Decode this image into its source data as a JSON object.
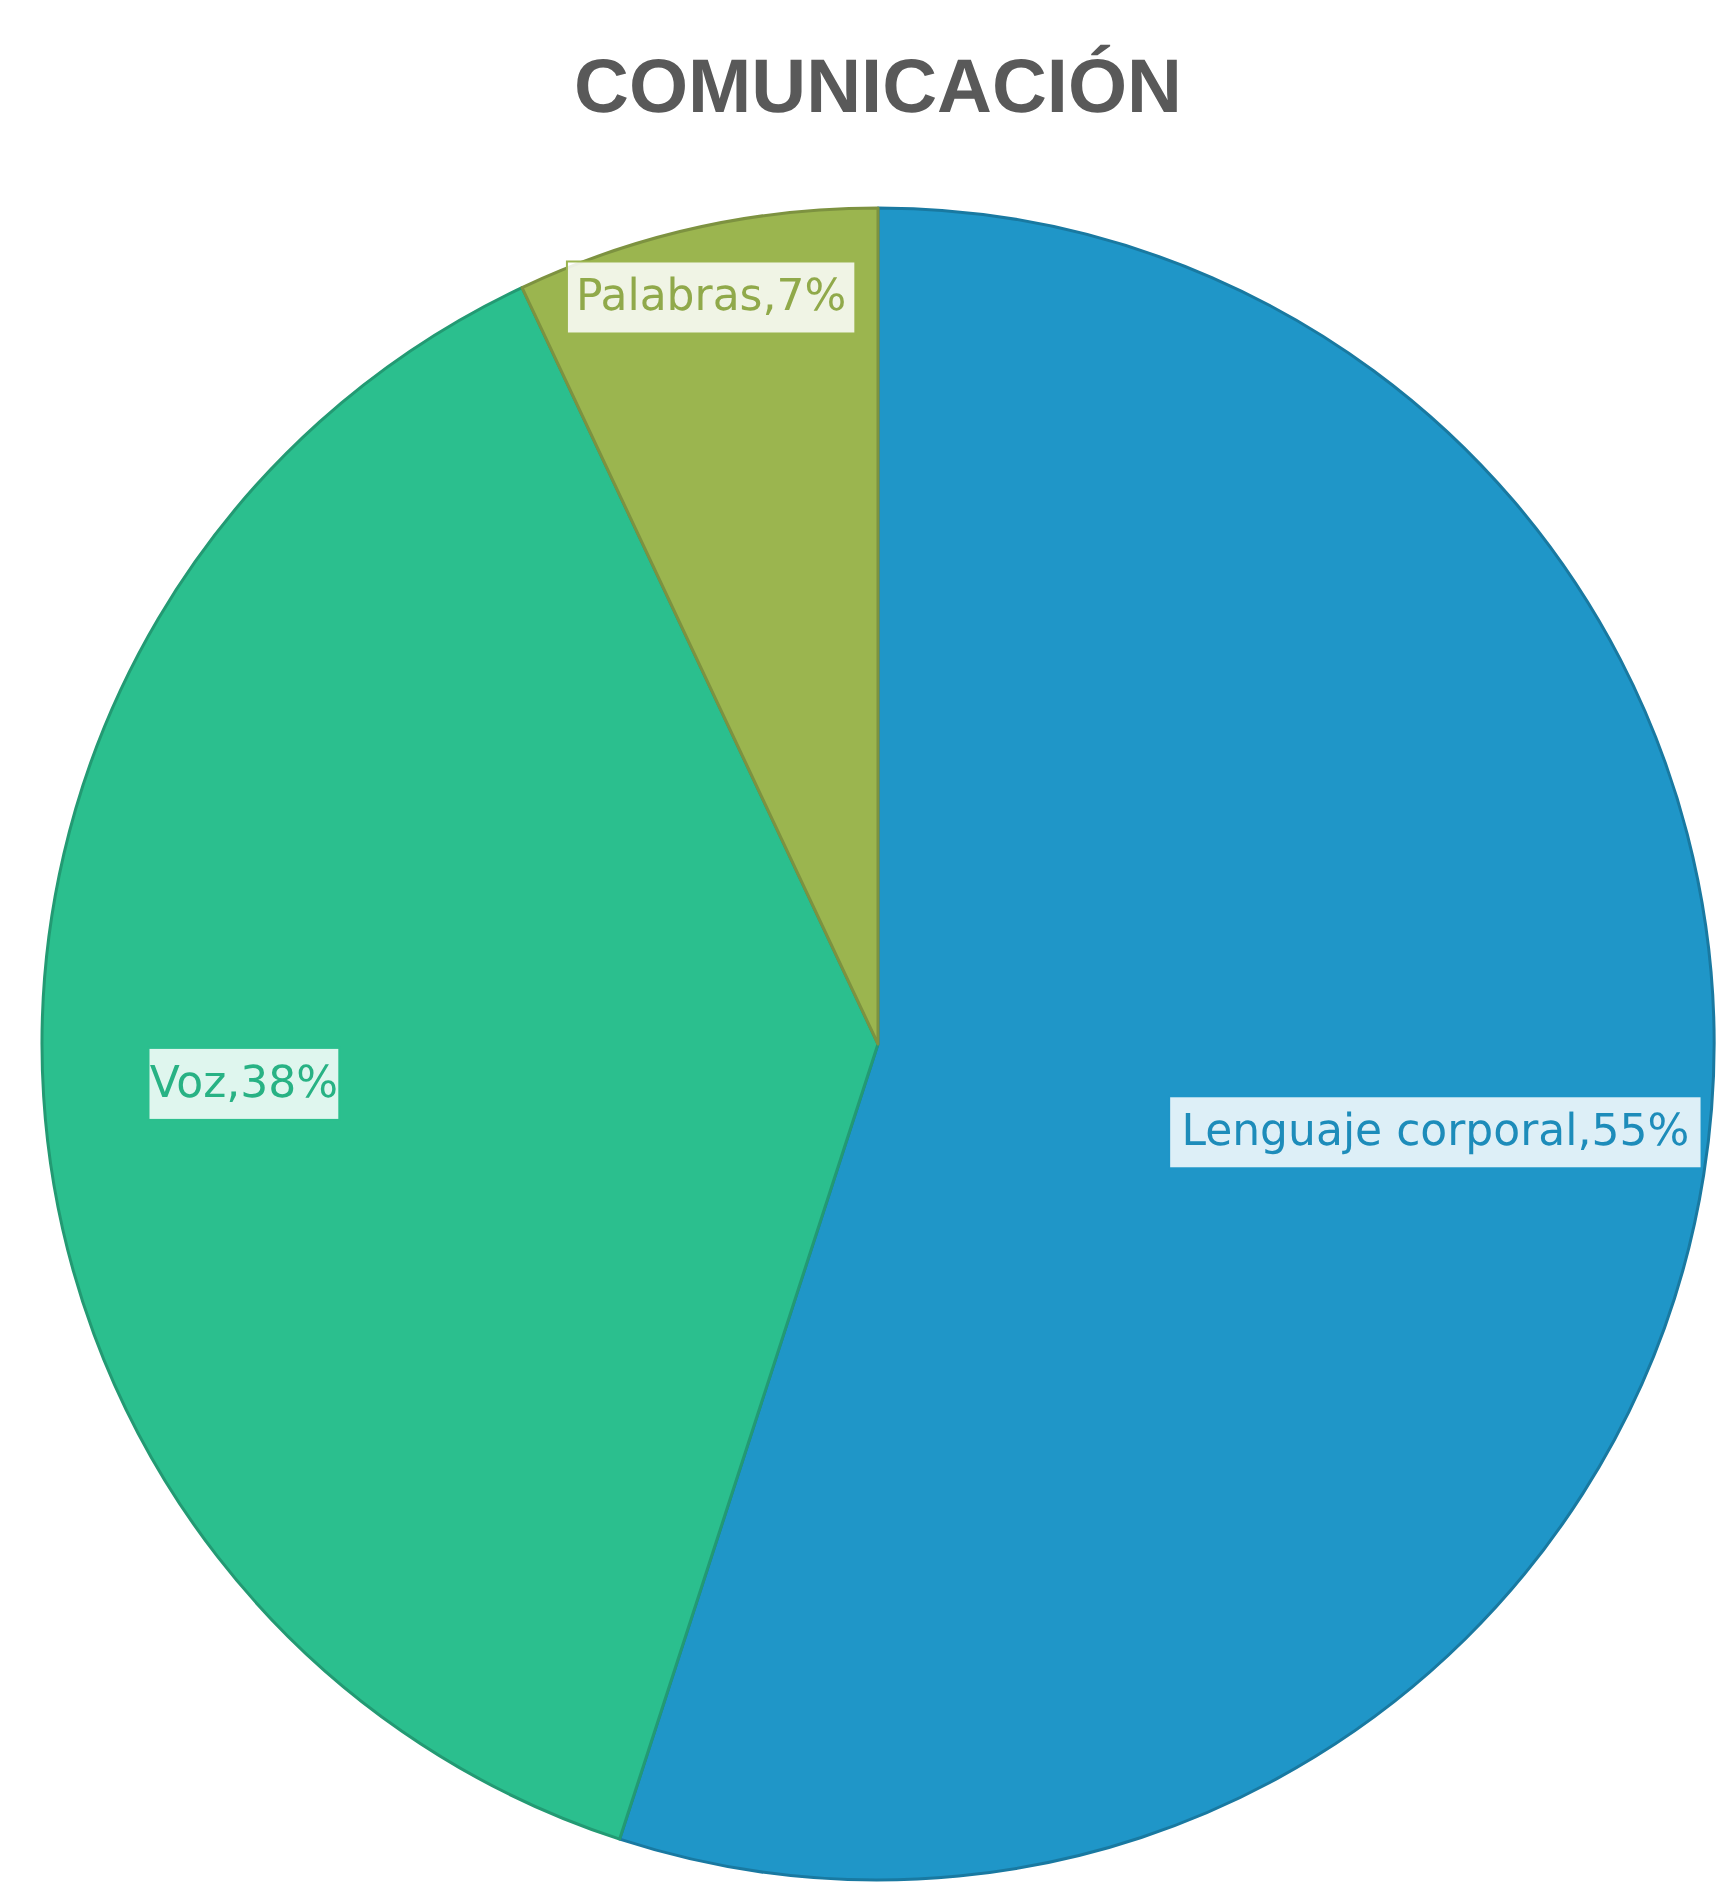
{
  "chart_data": {
    "type": "pie",
    "title": "COMUNICACIÓN",
    "categories": [
      "Lenguaje corporal",
      "Voz",
      "Palabras"
    ],
    "values": [
      55,
      38,
      7
    ],
    "value_labels": [
      "55%",
      "38%",
      "7%"
    ],
    "colors": [
      "#1f96c8",
      "#2bbf8e",
      "#9bb54f"
    ]
  }
}
